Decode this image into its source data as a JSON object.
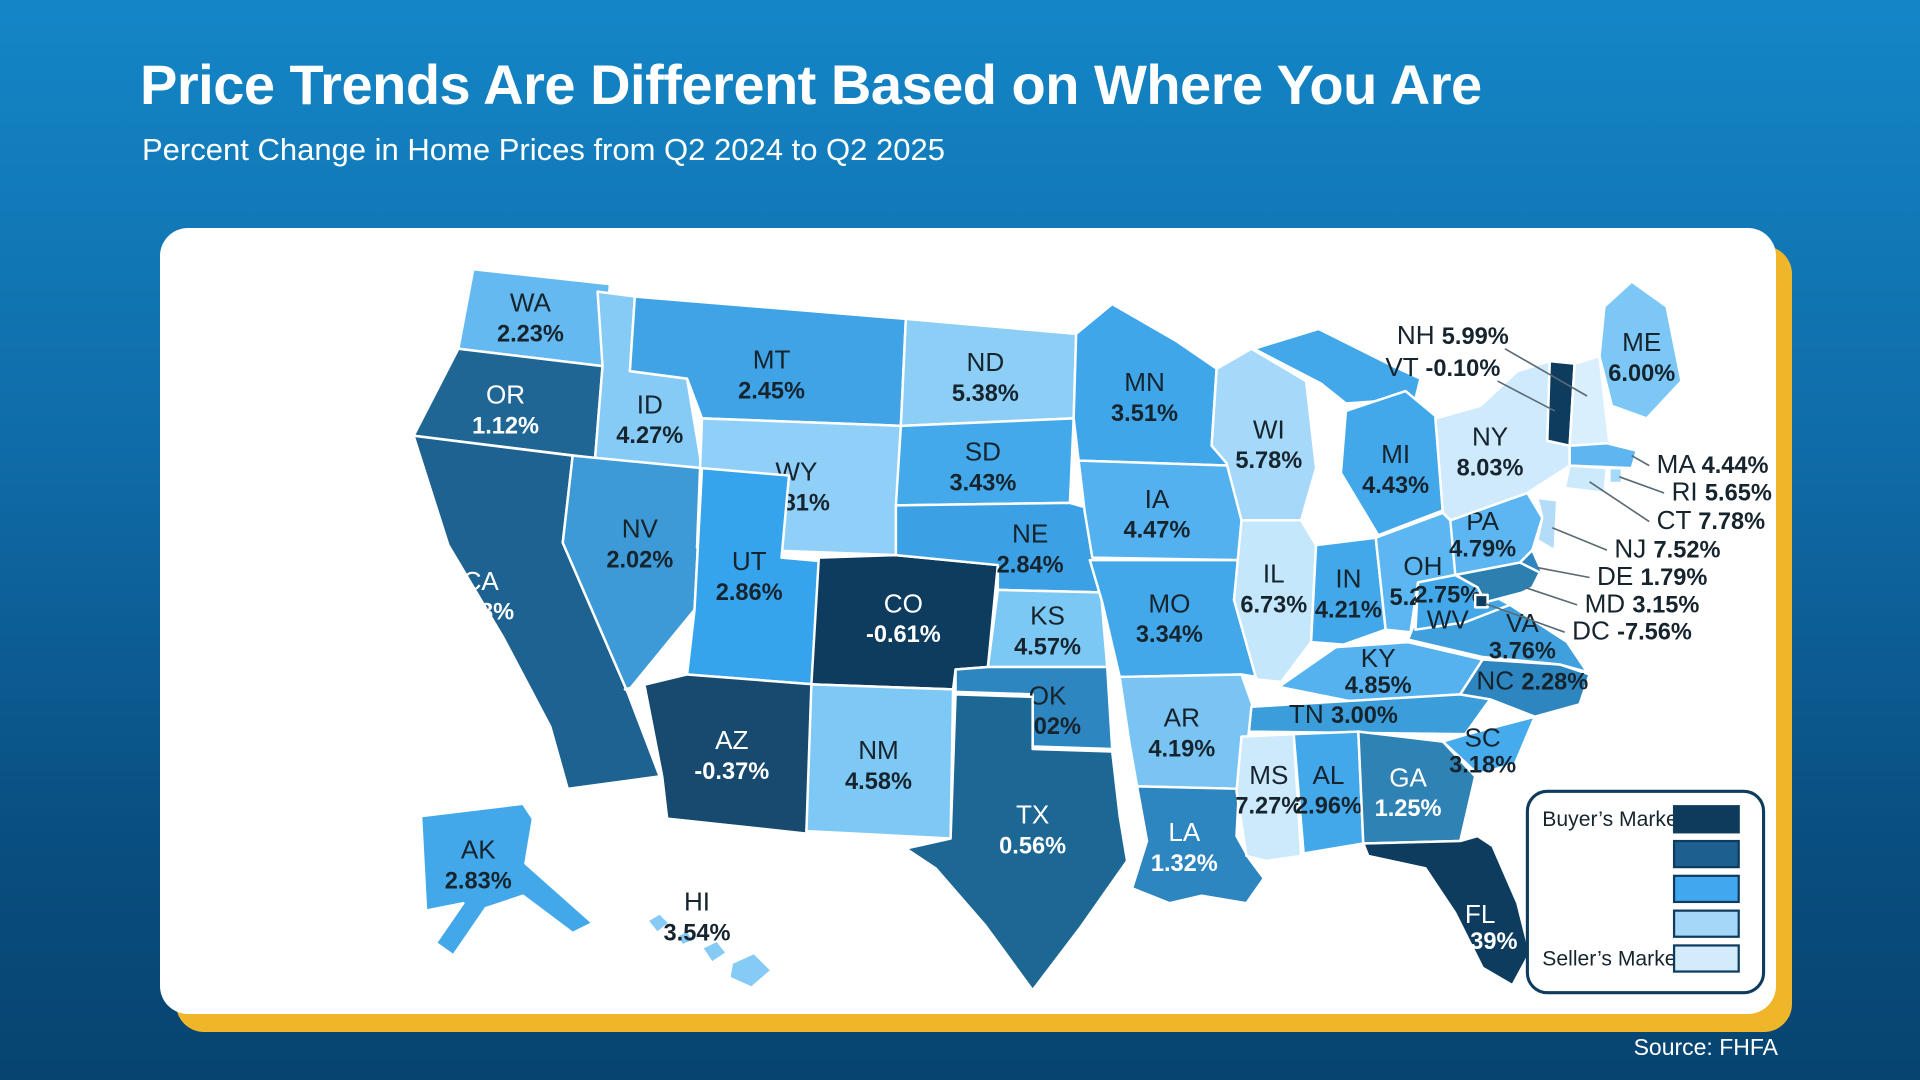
{
  "page": {
    "title": "Price Trends Are Different Based on Where You Are",
    "subtitle": "Percent Change in Home Prices from Q2 2024 to Q2 2025",
    "source": "Source: FHFA"
  },
  "colors": {
    "background_top": "#1486c7",
    "background_bottom": "#074470",
    "card": "#ffffff",
    "card_accent": "#f0b62a",
    "state_border": "#ffffff",
    "dark_text": "#16242e",
    "legend_border": "#0e3c5f"
  },
  "legend": {
    "top_label": "Buyer’s Market",
    "bottom_label": "Seller’s Market",
    "swatches": [
      "#0e3a5c",
      "#1d5f8e",
      "#41a7ef",
      "#a5d8f8",
      "#d4ebfc"
    ]
  },
  "chart_data": {
    "type": "heatmap",
    "subtype": "us-choropleth-map",
    "title": "Price Trends Are Different Based on Where You Are",
    "subtitle": "Percent Change in Home Prices from Q2 2024 to Q2 2025",
    "source": "FHFA",
    "unit": "percent change Q2 2024 to Q2 2025",
    "legend": {
      "dark_end": "Buyer's Market",
      "light_end": "Seller's Market"
    },
    "states": [
      {
        "abbr": "WA",
        "value": 2.23,
        "display": "2.23%",
        "fill": "#64b9f0",
        "text": "dark"
      },
      {
        "abbr": "OR",
        "value": 1.12,
        "display": "1.12%",
        "fill": "#1f6694",
        "text": "white"
      },
      {
        "abbr": "CA",
        "value": 0.38,
        "display": "0.38%",
        "fill": "#1d6290",
        "text": "white"
      },
      {
        "abbr": "ID",
        "value": 4.27,
        "display": "4.27%",
        "fill": "#86cbf6",
        "text": "dark"
      },
      {
        "abbr": "NV",
        "value": 2.02,
        "display": "2.02%",
        "fill": "#3e9ad6",
        "text": "dark"
      },
      {
        "abbr": "MT",
        "value": 2.45,
        "display": "2.45%",
        "fill": "#3fa3e6",
        "text": "dark"
      },
      {
        "abbr": "WY",
        "value": 4.81,
        "display": "4.81%",
        "fill": "#90cff7",
        "text": "dark"
      },
      {
        "abbr": "UT",
        "value": 2.86,
        "display": "2.86%",
        "fill": "#36a4ec",
        "text": "dark"
      },
      {
        "abbr": "CO",
        "value": -0.61,
        "display": "-0.61%",
        "fill": "#0e3c5f",
        "text": "white"
      },
      {
        "abbr": "AZ",
        "value": -0.37,
        "display": "-0.37%",
        "fill": "#174a6e",
        "text": "white"
      },
      {
        "abbr": "NM",
        "value": 4.58,
        "display": "4.58%",
        "fill": "#7ec8f5",
        "text": "dark"
      },
      {
        "abbr": "ND",
        "value": 5.38,
        "display": "5.38%",
        "fill": "#8ccef6",
        "text": "dark"
      },
      {
        "abbr": "SD",
        "value": 3.43,
        "display": "3.43%",
        "fill": "#44a9ea",
        "text": "dark"
      },
      {
        "abbr": "NE",
        "value": 2.84,
        "display": "2.84%",
        "fill": "#3ca0e4",
        "text": "dark"
      },
      {
        "abbr": "KS",
        "value": 4.57,
        "display": "4.57%",
        "fill": "#7cc8f5",
        "text": "dark"
      },
      {
        "abbr": "OK",
        "value": 2.02,
        "display": "2.02%",
        "fill": "#2e86c0",
        "text": "dark"
      },
      {
        "abbr": "TX",
        "value": 0.56,
        "display": "0.56%",
        "fill": "#1d6794",
        "text": "white"
      },
      {
        "abbr": "MN",
        "value": 3.51,
        "display": "3.51%",
        "fill": "#3fa6e9",
        "text": "dark"
      },
      {
        "abbr": "IA",
        "value": 4.47,
        "display": "4.47%",
        "fill": "#52b1ee",
        "text": "dark"
      },
      {
        "abbr": "MO",
        "value": 3.34,
        "display": "3.34%",
        "fill": "#42a8ea",
        "text": "dark"
      },
      {
        "abbr": "AR",
        "value": 4.19,
        "display": "4.19%",
        "fill": "#7ac4f4",
        "text": "dark"
      },
      {
        "abbr": "LA",
        "value": 1.32,
        "display": "1.32%",
        "fill": "#2e86c0",
        "text": "white"
      },
      {
        "abbr": "WI",
        "value": 5.78,
        "display": "5.78%",
        "fill": "#a6d9f9",
        "text": "dark"
      },
      {
        "abbr": "IL",
        "value": 6.73,
        "display": "6.73%",
        "fill": "#c5e7fc",
        "text": "dark"
      },
      {
        "abbr": "IN",
        "value": 4.21,
        "display": "4.21%",
        "fill": "#42a8ea",
        "text": "dark"
      },
      {
        "abbr": "MI",
        "value": 4.43,
        "display": "4.43%",
        "fill": "#42a8ea",
        "text": "dark"
      },
      {
        "abbr": "OH",
        "value": 5.25,
        "display": "5.25%",
        "fill": "#5cb6f1",
        "text": "dark"
      },
      {
        "abbr": "KY",
        "value": 4.85,
        "display": "4.85%",
        "fill": "#55b2ef",
        "text": "dark"
      },
      {
        "abbr": "TN",
        "value": 3.0,
        "display": "3.00%",
        "fill": "#3b9dda",
        "text": "dark"
      },
      {
        "abbr": "MS",
        "value": 7.27,
        "display": "7.27%",
        "fill": "#cdeafd",
        "text": "dark"
      },
      {
        "abbr": "AL",
        "value": 2.96,
        "display": "2.96%",
        "fill": "#42a8ea",
        "text": "dark"
      },
      {
        "abbr": "GA",
        "value": 1.25,
        "display": "1.25%",
        "fill": "#2e82b4",
        "text": "white"
      },
      {
        "abbr": "FL",
        "value": -1.39,
        "display": "-1.39%",
        "fill": "#0e3c5f",
        "text": "white"
      },
      {
        "abbr": "SC",
        "value": 3.18,
        "display": "3.18%",
        "fill": "#46abec",
        "text": "dark"
      },
      {
        "abbr": "NC",
        "value": 2.28,
        "display": "2.28%",
        "fill": "#2e86c0",
        "text": "dark"
      },
      {
        "abbr": "VA",
        "value": 3.76,
        "display": "3.76%",
        "fill": "#3fa0dd",
        "text": "dark"
      },
      {
        "abbr": "WV",
        "value": 2.75,
        "display": "2.75%",
        "fill": "#42a8ea",
        "text": "dark"
      },
      {
        "abbr": "PA",
        "value": 4.79,
        "display": "4.79%",
        "fill": "#5cb6f1",
        "text": "dark"
      },
      {
        "abbr": "NY",
        "value": 8.03,
        "display": "8.03%",
        "fill": "#cfeafd",
        "text": "dark"
      },
      {
        "abbr": "VT",
        "value": -0.1,
        "display": "-0.10%",
        "fill": "#0e3c5f",
        "text": "dark"
      },
      {
        "abbr": "NH",
        "value": 5.99,
        "display": "5.99%",
        "fill": "#d9effd",
        "text": "dark"
      },
      {
        "abbr": "ME",
        "value": 6.0,
        "display": "6.00%",
        "fill": "#7cc7f5",
        "text": "dark"
      },
      {
        "abbr": "MA",
        "value": 4.44,
        "display": "4.44%",
        "fill": "#5fb5ef",
        "text": "dark"
      },
      {
        "abbr": "RI",
        "value": 5.65,
        "display": "5.65%",
        "fill": "#a6d9f9",
        "text": "dark"
      },
      {
        "abbr": "CT",
        "value": 7.78,
        "display": "7.78%",
        "fill": "#cdeafd",
        "text": "dark"
      },
      {
        "abbr": "NJ",
        "value": 7.52,
        "display": "7.52%",
        "fill": "#b3dcf9",
        "text": "dark"
      },
      {
        "abbr": "DE",
        "value": 1.79,
        "display": "1.79%",
        "fill": "#2e86c0",
        "text": "dark"
      },
      {
        "abbr": "MD",
        "value": 3.15,
        "display": "3.15%",
        "fill": "#2d7fb0",
        "text": "dark"
      },
      {
        "abbr": "DC",
        "value": -7.56,
        "display": "-7.56%",
        "fill": "#0e3c5f",
        "text": "dark"
      },
      {
        "abbr": "AK",
        "value": 2.83,
        "display": "2.83%",
        "fill": "#42a8ea",
        "text": "dark"
      },
      {
        "abbr": "HI",
        "value": 3.54,
        "display": "3.54%",
        "fill": "#86cbf6",
        "text": "dark"
      }
    ]
  }
}
